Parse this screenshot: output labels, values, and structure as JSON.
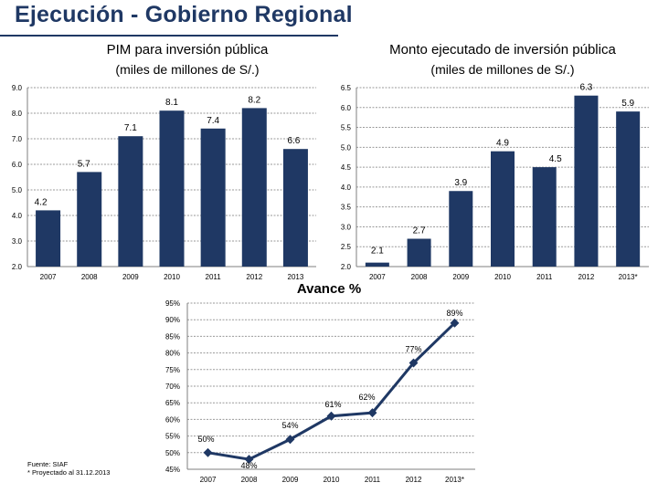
{
  "page": {
    "title": "Ejecución - Gobierno Regional",
    "footnote_source": "Fuente: SIAF",
    "footnote_projection": "* Proyectado al 31.12.2013"
  },
  "colors": {
    "bar": "#1f3864",
    "line": "#1f3864",
    "title": "#1f3864",
    "grid": "#9a9a9a"
  },
  "chart_data": [
    {
      "type": "bar",
      "title": "PIM para inversión pública",
      "subtitle": "(miles de millones de S/.)",
      "categories": [
        "2007",
        "2008",
        "2009",
        "2010",
        "2011",
        "2012",
        "2013"
      ],
      "values": [
        4.2,
        5.7,
        7.1,
        8.1,
        7.4,
        8.2,
        6.6
      ],
      "data_labels": [
        "4.2",
        "5.7",
        "7.1",
        "8.1",
        "7.4",
        "8.2",
        "6.6"
      ],
      "ylim": [
        2.0,
        9.0
      ],
      "yticks": [
        "2.0",
        "3.0",
        "4.0",
        "5.0",
        "6.0",
        "7.0",
        "8.0",
        "9.0"
      ],
      "grid": true
    },
    {
      "type": "bar",
      "title": "Monto ejecutado de inversión pública",
      "subtitle": "(miles de millones de S/.)",
      "categories": [
        "2007",
        "2008",
        "2009",
        "2010",
        "2011",
        "2012",
        "2013*"
      ],
      "values": [
        2.1,
        2.7,
        3.9,
        4.9,
        4.5,
        6.3,
        5.9
      ],
      "data_labels": [
        "2.1",
        "2.7",
        "3.9",
        "4.9",
        "4.5",
        "6.3",
        "5.9"
      ],
      "ylim": [
        2.0,
        6.5
      ],
      "yticks": [
        "2.0",
        "2.5",
        "3.0",
        "3.5",
        "4.0",
        "4.5",
        "5.0",
        "5.5",
        "6.0",
        "6.5"
      ],
      "grid": true
    },
    {
      "type": "line",
      "title": "Avance %",
      "categories": [
        "2007",
        "2008",
        "2009",
        "2010",
        "2011",
        "2012",
        "2013*"
      ],
      "values": [
        50,
        48,
        54,
        61,
        62,
        77,
        89
      ],
      "data_labels": [
        "50%",
        "48%",
        "54%",
        "61%",
        "62%",
        "77%",
        "89%"
      ],
      "ylim": [
        45,
        95
      ],
      "yticks": [
        "45%",
        "50%",
        "55%",
        "60%",
        "65%",
        "70%",
        "75%",
        "80%",
        "85%",
        "90%",
        "95%"
      ],
      "grid": true
    }
  ]
}
